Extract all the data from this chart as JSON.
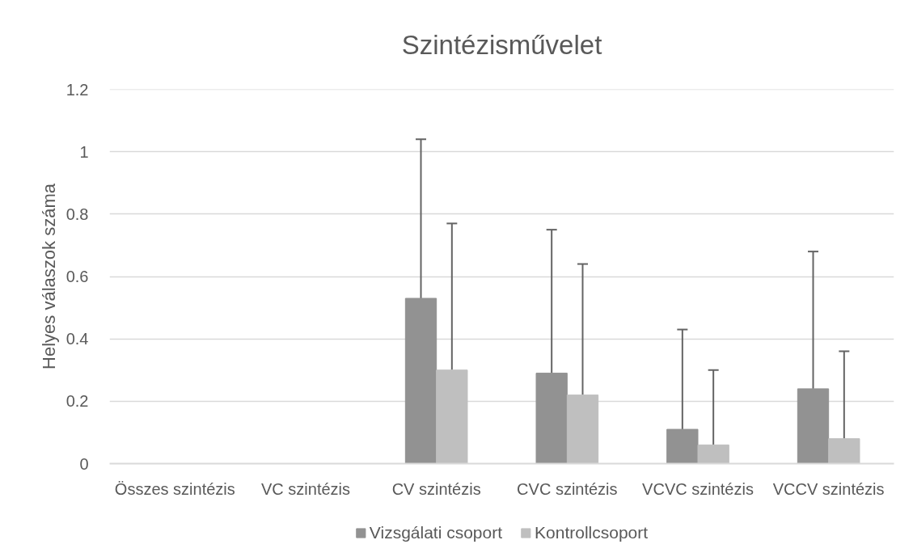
{
  "chart_data": {
    "type": "bar",
    "title": "Szintézisművelet",
    "ylabel": "Helyes válaszok száma",
    "categories": [
      "Összes szintézis",
      "VC szintézis",
      "CV szintézis",
      "CVC szintézis",
      "VCVC szintézis",
      "VCCV szintézis"
    ],
    "series": [
      {
        "name": "Vizsgálati csoport",
        "color": "#929292",
        "values": [
          0,
          0,
          0.53,
          0.29,
          0.11,
          0.24
        ],
        "errors": [
          null,
          null,
          [
            0.53,
            1.04
          ],
          [
            0.29,
            0.75
          ],
          [
            0.11,
            0.43
          ],
          [
            0.24,
            0.68
          ]
        ]
      },
      {
        "name": "Kontrollcsoport",
        "color": "#bfbfbf",
        "values": [
          0,
          0,
          0.3,
          0.22,
          0.06,
          0.08
        ],
        "errors": [
          null,
          null,
          [
            0.3,
            0.77
          ],
          [
            0.22,
            0.64
          ],
          [
            0.06,
            0.3
          ],
          [
            0.08,
            0.36
          ]
        ]
      }
    ],
    "ylim": [
      0,
      1.2
    ],
    "yticks": [
      0,
      0.2,
      0.4,
      0.6,
      0.8,
      1,
      1.2
    ],
    "grid": "y",
    "legend": "bottom"
  }
}
